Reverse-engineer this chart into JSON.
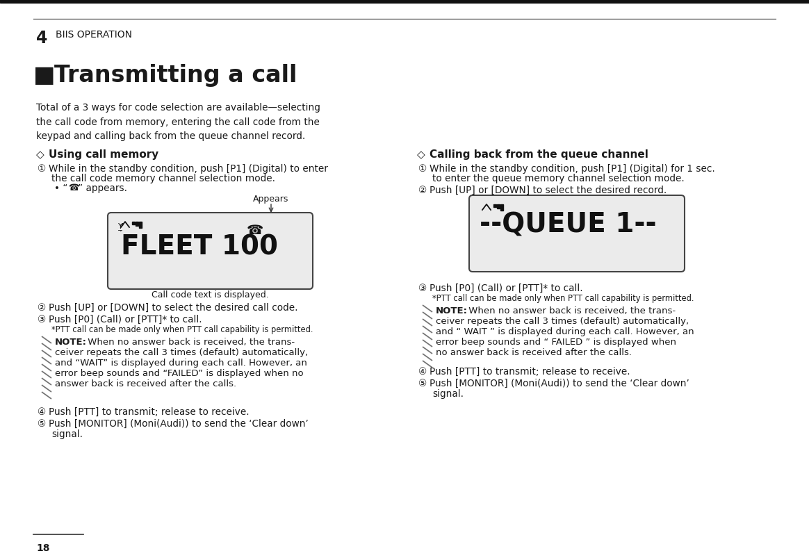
{
  "page_number": "18",
  "chapter_number": "4",
  "chapter_title": "BIIS OPERATION",
  "section_title": "■Transmitting a call",
  "intro_text": "Total of a 3 ways for code selection are available—selecting\nthe call code from memory, entering the call code from the\nkeypad and calling back from the queue channel record.",
  "left_section_title": "◇  Using call memory",
  "right_section_title": "◇  Calling back from the queue channel",
  "left_lcd_label_top": "Appears",
  "left_lcd_text": "FLEET 100",
  "left_lcd_label_bottom": "Call code text is displayed.",
  "right_lcd_text": "--QUEUE 1--",
  "bg_color": "#ffffff",
  "text_color": "#1a1a1a",
  "note_bold_prefix": "NOTE:",
  "left_note_rest": " When no answer back is received, the trans-\nceiver repeats the call 3 times (default) automatically,\nand “WAIT” is displayed during each call. However, an\nerror beep sounds and “FAILED” is displayed when no\nanswer back is received after the calls.",
  "right_note_rest": " When no answer back is received, the trans-\nceiver repeats the call 3 times (default) automatically,\nand “ WAIT ” is displayed during each call. However, an\nerror beep sounds and “ FAILED ” is displayed when\nno answer back is received after the calls."
}
